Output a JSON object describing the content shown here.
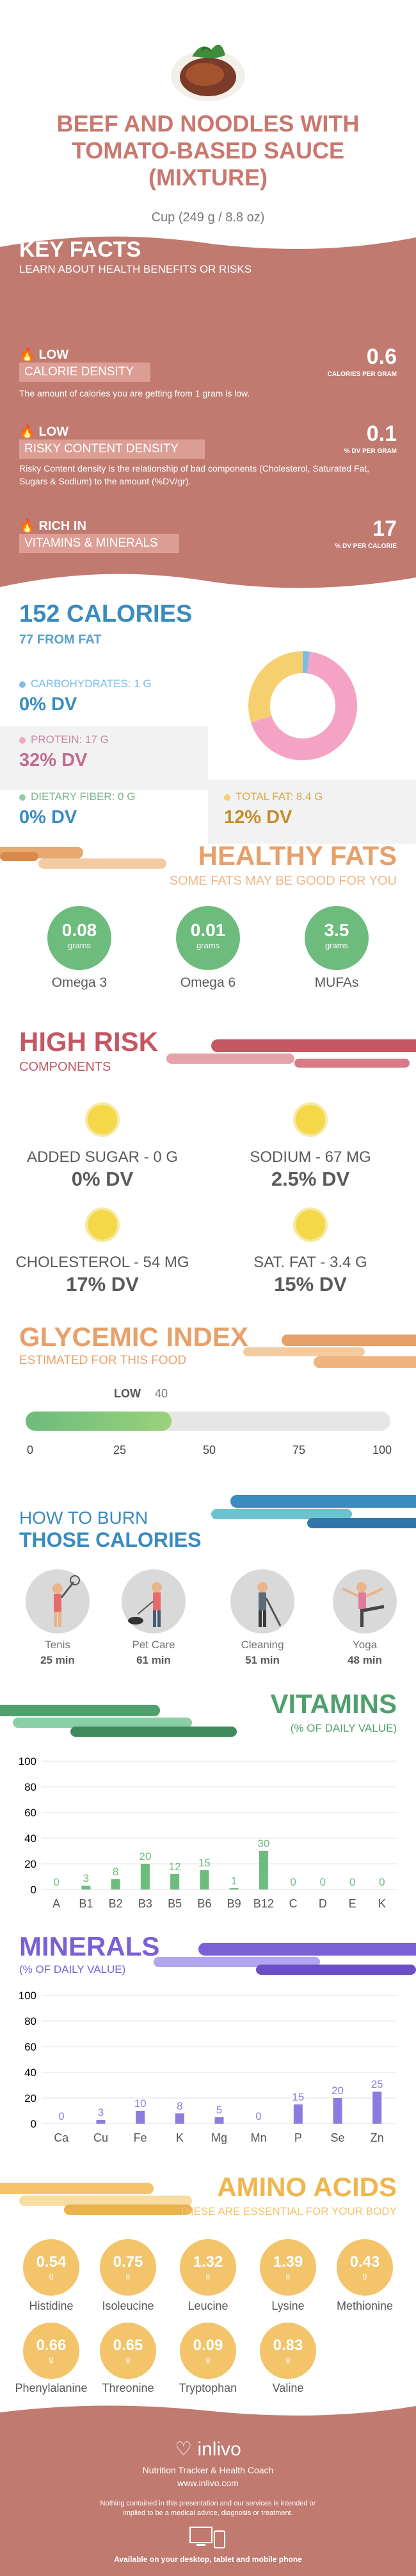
{
  "header": {
    "title": "BEEF AND NOODLES WITH TOMATO-BASED SAUCE (MIXTURE)",
    "serving": "Cup (249 g / 8.8 oz)"
  },
  "key_facts": {
    "title": "KEY FACTS",
    "subtitle": "LEARN ABOUT HEALTH BENEFITS OR RISKS",
    "items": [
      {
        "level": "LOW",
        "label": "CALORIE DENSITY",
        "value": "0.6",
        "unit": "CALORIES PER GRAM",
        "desc": "The amount of calories you are getting from 1 gram is low."
      },
      {
        "level": "LOW",
        "label": "RISKY CONTENT DENSITY",
        "value": "0.1",
        "unit": "% DV PER GRAM",
        "desc": "Risky Content density is the relationship of bad components (Cholesterol, Saturated Fat, Sugars & Sodium) to the amount (%DV/gr)."
      },
      {
        "level": "RICH IN",
        "label": "VITAMINS & MINERALS",
        "value": "17",
        "unit": "% DV PER CALORIE",
        "desc": ""
      }
    ],
    "colors": {
      "bg": "#c07a70",
      "tag": "#dc9d95"
    }
  },
  "calories": {
    "title": "152 CALORIES",
    "from_fat": "77 FROM FAT",
    "nutrients": [
      {
        "label": "CARBOHYDRATES: 1 g",
        "dv": "0% DV",
        "color": "#7bbde6"
      },
      {
        "label": "PROTEIN: 17 g",
        "dv": "32% DV",
        "color": "#f4a3c4"
      },
      {
        "label": "DIETARY FIBER: 0 g",
        "dv": "0% DV",
        "color": "#8bd0a5"
      },
      {
        "label": "TOTAL FAT: 8.4 g",
        "dv": "12% DV",
        "color": "#f6cf6f"
      }
    ]
  },
  "healthy_fats": {
    "title": "HEALTHY FATS",
    "subtitle": "SOME FATS MAY BE GOOD FOR YOU",
    "items": [
      {
        "value": "0.08",
        "unit": "grams",
        "label": "Omega 3"
      },
      {
        "value": "0.01",
        "unit": "grams",
        "label": "Omega 6"
      },
      {
        "value": "3.5",
        "unit": "grams",
        "label": "MUFAs"
      }
    ]
  },
  "high_risk": {
    "title": "HIGH RISK",
    "subtitle": "COMPONENTS",
    "items": [
      {
        "label": "ADDED SUGAR - 0 g",
        "dv": "0% DV"
      },
      {
        "label": "SODIUM - 67 mg",
        "dv": "2.5% DV"
      },
      {
        "label": "CHOLESTEROL - 54 mg",
        "dv": "17% DV"
      },
      {
        "label": "SAT. FAT - 3.4 g",
        "dv": "15% DV"
      }
    ]
  },
  "glycemic": {
    "title": "GLYCEMIC INDEX",
    "subtitle": "ESTIMATED FOR THIS FOOD",
    "level": "LOW",
    "value": 40,
    "value_text": "40",
    "ticks": [
      "0",
      "25",
      "50",
      "75",
      "100"
    ]
  },
  "burn": {
    "title_line1": "HOW TO BURN",
    "title_line2": "THOSE CALORIES",
    "items": [
      {
        "label": "Tenis",
        "minutes": "25 min",
        "icon": "tennis-player-icon"
      },
      {
        "label": "Pet Care",
        "minutes": "61 min",
        "icon": "dog-walker-icon"
      },
      {
        "label": "Cleaning",
        "minutes": "51 min",
        "icon": "cleaning-person-icon"
      },
      {
        "label": "Yoga",
        "minutes": "48 min",
        "icon": "yoga-pose-icon"
      }
    ]
  },
  "vitamins": {
    "title": "VITAMINS",
    "subtitle": "(% OF DAILY VALUE)"
  },
  "minerals": {
    "title": "MINERALS",
    "subtitle": "(% OF DAILY VALUE)"
  },
  "chart_data": [
    {
      "type": "bar",
      "categories": [
        "A",
        "B1",
        "B2",
        "B3",
        "B5",
        "B6",
        "B9",
        "B12",
        "C",
        "D",
        "E",
        "K"
      ],
      "values": [
        0,
        3,
        8,
        20,
        12,
        15,
        1,
        30,
        0,
        0,
        0,
        0
      ],
      "ylim": [
        0,
        100
      ],
      "yticks": [
        "0",
        "20",
        "40",
        "60",
        "80",
        "100"
      ],
      "color": "#6dbb7d"
    },
    {
      "type": "bar",
      "categories": [
        "Ca",
        "Cu",
        "Fe",
        "K",
        "Mg",
        "Mn",
        "P",
        "Se",
        "Zn"
      ],
      "values": [
        0,
        3,
        10,
        8,
        5,
        0,
        15,
        20,
        25
      ],
      "ylim": [
        0,
        100
      ],
      "yticks": [
        "0",
        "20",
        "40",
        "60",
        "80",
        "100"
      ],
      "color": "#8e7be0"
    }
  ],
  "amino": {
    "title": "AMINO ACIDS",
    "subtitle": "THESE ARE ESSENTIAL FOR YOUR BODY",
    "items": [
      {
        "value": "0.54",
        "unit": "g",
        "label": "Histidine"
      },
      {
        "value": "0.75",
        "unit": "g",
        "label": "Isoleucine"
      },
      {
        "value": "1.32",
        "unit": "g",
        "label": "Leucine"
      },
      {
        "value": "1.39",
        "unit": "g",
        "label": "Lysine"
      },
      {
        "value": "0.43",
        "unit": "g",
        "label": "Methionine"
      },
      {
        "value": "0.66",
        "unit": "g",
        "label": "Phenylalanine"
      },
      {
        "value": "0.65",
        "unit": "g",
        "label": "Threonine"
      },
      {
        "value": "0.09",
        "unit": "g",
        "label": "Tryptophan"
      },
      {
        "value": "0.83",
        "unit": "g",
        "label": "Valine"
      }
    ]
  },
  "footer": {
    "brand": "inlivo",
    "tagline": "Nutrition Tracker & Health Coach",
    "url": "www.inlivo.com",
    "disclaimer": "Nothing contained in this presentation and our services is intended or implied to be a medical advice, diagnosis or treatment.",
    "availability": "Available on your desktop, tablet and mobile phone"
  }
}
